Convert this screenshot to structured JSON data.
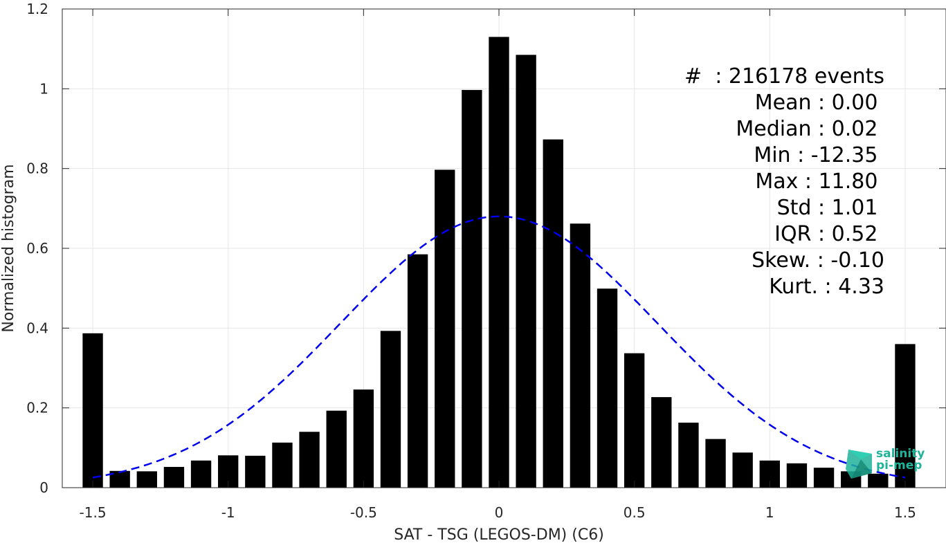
{
  "chart_data": {
    "type": "bar",
    "xlabel": "SAT - TSG (LEGOS-DM) (C6)",
    "ylabel": "Normalized histogram",
    "xlim": [
      -1.55,
      1.55
    ],
    "ylim": [
      0,
      1.2
    ],
    "x_ticks": [
      "-1.5",
      "-1",
      "-0.5",
      "0",
      "0.5",
      "1",
      "1.5"
    ],
    "y_ticks": [
      "0",
      "0.2",
      "0.4",
      "0.6",
      "0.8",
      "1",
      "1.2"
    ],
    "grid": true,
    "bar_width": 0.075,
    "bars": {
      "x": [
        -1.5,
        -1.4,
        -1.3,
        -1.2,
        -1.1,
        -1.0,
        -0.9,
        -0.8,
        -0.7,
        -0.6,
        -0.5,
        -0.4,
        -0.3,
        -0.2,
        -0.1,
        0.0,
        0.1,
        0.2,
        0.3,
        0.4,
        0.5,
        0.6,
        0.7,
        0.8,
        0.9,
        1.0,
        1.1,
        1.2,
        1.3,
        1.4,
        1.5
      ],
      "values": [
        0.387,
        0.042,
        0.041,
        0.052,
        0.068,
        0.081,
        0.08,
        0.113,
        0.14,
        0.193,
        0.246,
        0.393,
        0.585,
        0.797,
        0.997,
        1.13,
        1.085,
        0.873,
        0.662,
        0.499,
        0.337,
        0.227,
        0.163,
        0.122,
        0.088,
        0.068,
        0.061,
        0.05,
        0.041,
        0.035,
        0.36
      ]
    },
    "fit_curve": {
      "style": "dashed",
      "color": "#0000ee",
      "mean": 0.0,
      "std": 0.585,
      "peak": 0.68
    },
    "bar_color": "#000000"
  },
  "stats": [
    "#  : 216178 events",
    "Mean : 0.00 ",
    "Median : 0.02 ",
    "Min : -12.35 ",
    "Max : 11.80 ",
    "Std : 1.01 ",
    "IQR : 0.52 ",
    "Skew. : -0.10",
    "Kurt. : 4.33"
  ],
  "logo": {
    "line1": "salinity",
    "line2": "pi-mep"
  }
}
